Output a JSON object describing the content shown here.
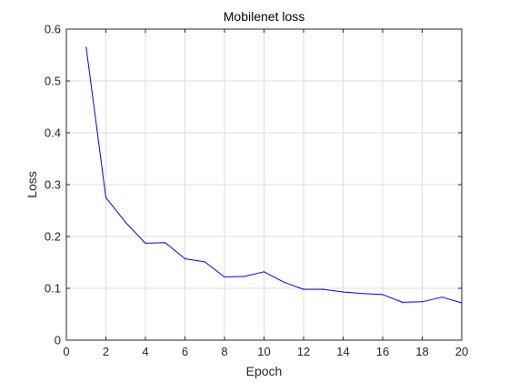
{
  "chart_data": {
    "type": "line",
    "title": "Mobilenet loss",
    "xlabel": "Epoch",
    "ylabel": "Loss",
    "xlim": [
      0,
      20
    ],
    "ylim": [
      0,
      0.6
    ],
    "xticks": [
      0,
      2,
      4,
      6,
      8,
      10,
      12,
      14,
      16,
      18,
      20
    ],
    "yticks": [
      0,
      0.1,
      0.2,
      0.3,
      0.4,
      0.5,
      0.6
    ],
    "grid": true,
    "legend": "none",
    "series": [
      {
        "color": "#0000ff",
        "x": [
          1,
          2,
          3,
          4,
          5,
          6,
          7,
          8,
          9,
          10,
          11,
          12,
          13,
          14,
          15,
          16,
          17,
          18,
          19,
          20
        ],
        "values": [
          0.565,
          0.275,
          0.227,
          0.187,
          0.188,
          0.157,
          0.151,
          0.122,
          0.123,
          0.132,
          0.112,
          0.098,
          0.098,
          0.093,
          0.09,
          0.088,
          0.073,
          0.074,
          0.083,
          0.072
        ]
      }
    ]
  }
}
